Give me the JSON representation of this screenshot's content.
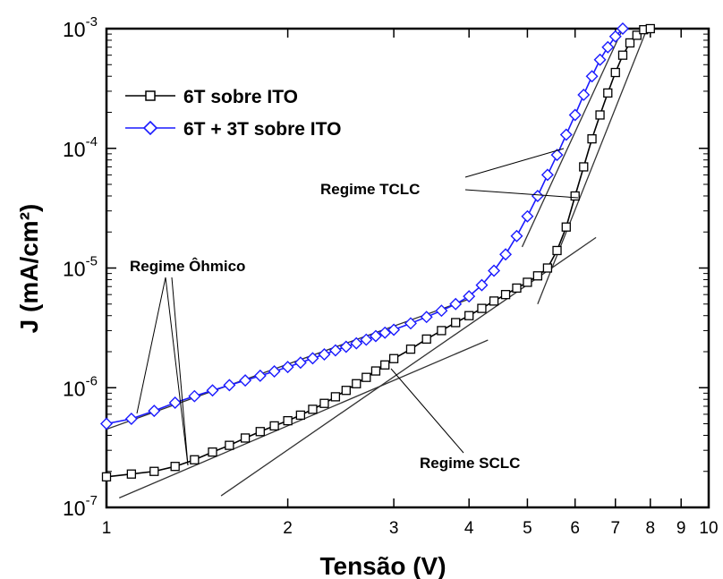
{
  "chart_data": {
    "type": "line",
    "xlabel": "Tensão (V)",
    "ylabel": "J (mA/cm²)",
    "x_scale": "log",
    "y_scale": "log",
    "xlim": [
      1,
      10
    ],
    "ylim": [
      1e-07,
      0.001
    ],
    "x_ticks": [
      "1",
      "2",
      "3",
      "4",
      "5",
      "6",
      "7",
      "8",
      "9",
      "10"
    ],
    "y_ticks": [
      {
        "base": "10",
        "exp": "-7"
      },
      {
        "base": "10",
        "exp": "-6"
      },
      {
        "base": "10",
        "exp": "-5"
      },
      {
        "base": "10",
        "exp": "-4"
      },
      {
        "base": "10",
        "exp": "-3"
      }
    ],
    "grid": false,
    "legend_position": "top-left",
    "series": [
      {
        "name": "6T sobre ITO",
        "marker": "square",
        "color": "#000000",
        "x": [
          1.0,
          1.1,
          1.2,
          1.3,
          1.4,
          1.5,
          1.6,
          1.7,
          1.8,
          1.9,
          2.0,
          2.1,
          2.2,
          2.3,
          2.4,
          2.5,
          2.6,
          2.7,
          2.8,
          2.9,
          3.0,
          3.2,
          3.4,
          3.6,
          3.8,
          4.0,
          4.2,
          4.4,
          4.6,
          4.8,
          5.0,
          5.2,
          5.4,
          5.6,
          5.8,
          6.0,
          6.2,
          6.4,
          6.6,
          6.8,
          7.0,
          7.2,
          7.4,
          7.6,
          7.8,
          8.0
        ],
        "y": [
          1.8e-07,
          1.9e-07,
          2e-07,
          2.2e-07,
          2.5e-07,
          2.9e-07,
          3.3e-07,
          3.8e-07,
          4.3e-07,
          4.8e-07,
          5.3e-07,
          5.9e-07,
          6.6e-07,
          7.4e-07,
          8.4e-07,
          9.5e-07,
          1.08e-06,
          1.22e-06,
          1.38e-06,
          1.55e-06,
          1.75e-06,
          2.1e-06,
          2.55e-06,
          3e-06,
          3.5e-06,
          4e-06,
          4.6e-06,
          5.3e-06,
          6e-06,
          6.8e-06,
          7.6e-06,
          8.6e-06,
          1e-05,
          1.4e-05,
          2.2e-05,
          4e-05,
          7e-05,
          0.00012,
          0.00019,
          0.00029,
          0.00043,
          0.0006,
          0.00076,
          0.00088,
          0.00098,
          0.001
        ]
      },
      {
        "name": "6T + 3T sobre ITO",
        "marker": "diamond",
        "color": "#1a1aff",
        "x": [
          1.0,
          1.1,
          1.2,
          1.3,
          1.4,
          1.5,
          1.6,
          1.7,
          1.8,
          1.9,
          2.0,
          2.1,
          2.2,
          2.3,
          2.4,
          2.5,
          2.6,
          2.7,
          2.8,
          2.9,
          3.0,
          3.2,
          3.4,
          3.6,
          3.8,
          4.0,
          4.2,
          4.4,
          4.6,
          4.8,
          5.0,
          5.2,
          5.4,
          5.6,
          5.8,
          6.0,
          6.2,
          6.4,
          6.6,
          6.8,
          7.0,
          7.2
        ],
        "y": [
          5e-07,
          5.5e-07,
          6.4e-07,
          7.5e-07,
          8.5e-07,
          9.5e-07,
          1.05e-06,
          1.15e-06,
          1.26e-06,
          1.37e-06,
          1.49e-06,
          1.62e-06,
          1.76e-06,
          1.9e-06,
          2.05e-06,
          2.2e-06,
          2.35e-06,
          2.52e-06,
          2.7e-06,
          2.88e-06,
          3.05e-06,
          3.45e-06,
          3.9e-06,
          4.4e-06,
          5e-06,
          5.8e-06,
          7.2e-06,
          9.5e-06,
          1.3e-05,
          1.85e-05,
          2.7e-05,
          4e-05,
          6e-05,
          8.8e-05,
          0.00013,
          0.00019,
          0.00028,
          0.0004,
          0.00055,
          0.0007,
          0.00086,
          0.001
        ]
      }
    ],
    "fit_lines": [
      {
        "name": "ohmic-fit-6T",
        "x": [
          1.05,
          4.3
        ],
        "y": [
          1.2e-07,
          2.5e-06
        ]
      },
      {
        "name": "sclc-fit-6T",
        "x": [
          1.55,
          6.5
        ],
        "y": [
          1.25e-07,
          1.8e-05
        ]
      },
      {
        "name": "tclc-fit-6T",
        "x": [
          5.2,
          7.9
        ],
        "y": [
          5e-06,
          0.001
        ]
      },
      {
        "name": "ohmic-fit-6T3T",
        "x": [
          1.0,
          4.0
        ],
        "y": [
          4.5e-07,
          5.5e-06
        ]
      },
      {
        "name": "tclc-fit-6T3T",
        "x": [
          4.9,
          7.2
        ],
        "y": [
          1.5e-05,
          0.001
        ]
      }
    ],
    "annotations": [
      {
        "text": "Regime Ôhmico"
      },
      {
        "text": "Regime TCLC"
      },
      {
        "text": "Regime SCLC"
      }
    ]
  }
}
